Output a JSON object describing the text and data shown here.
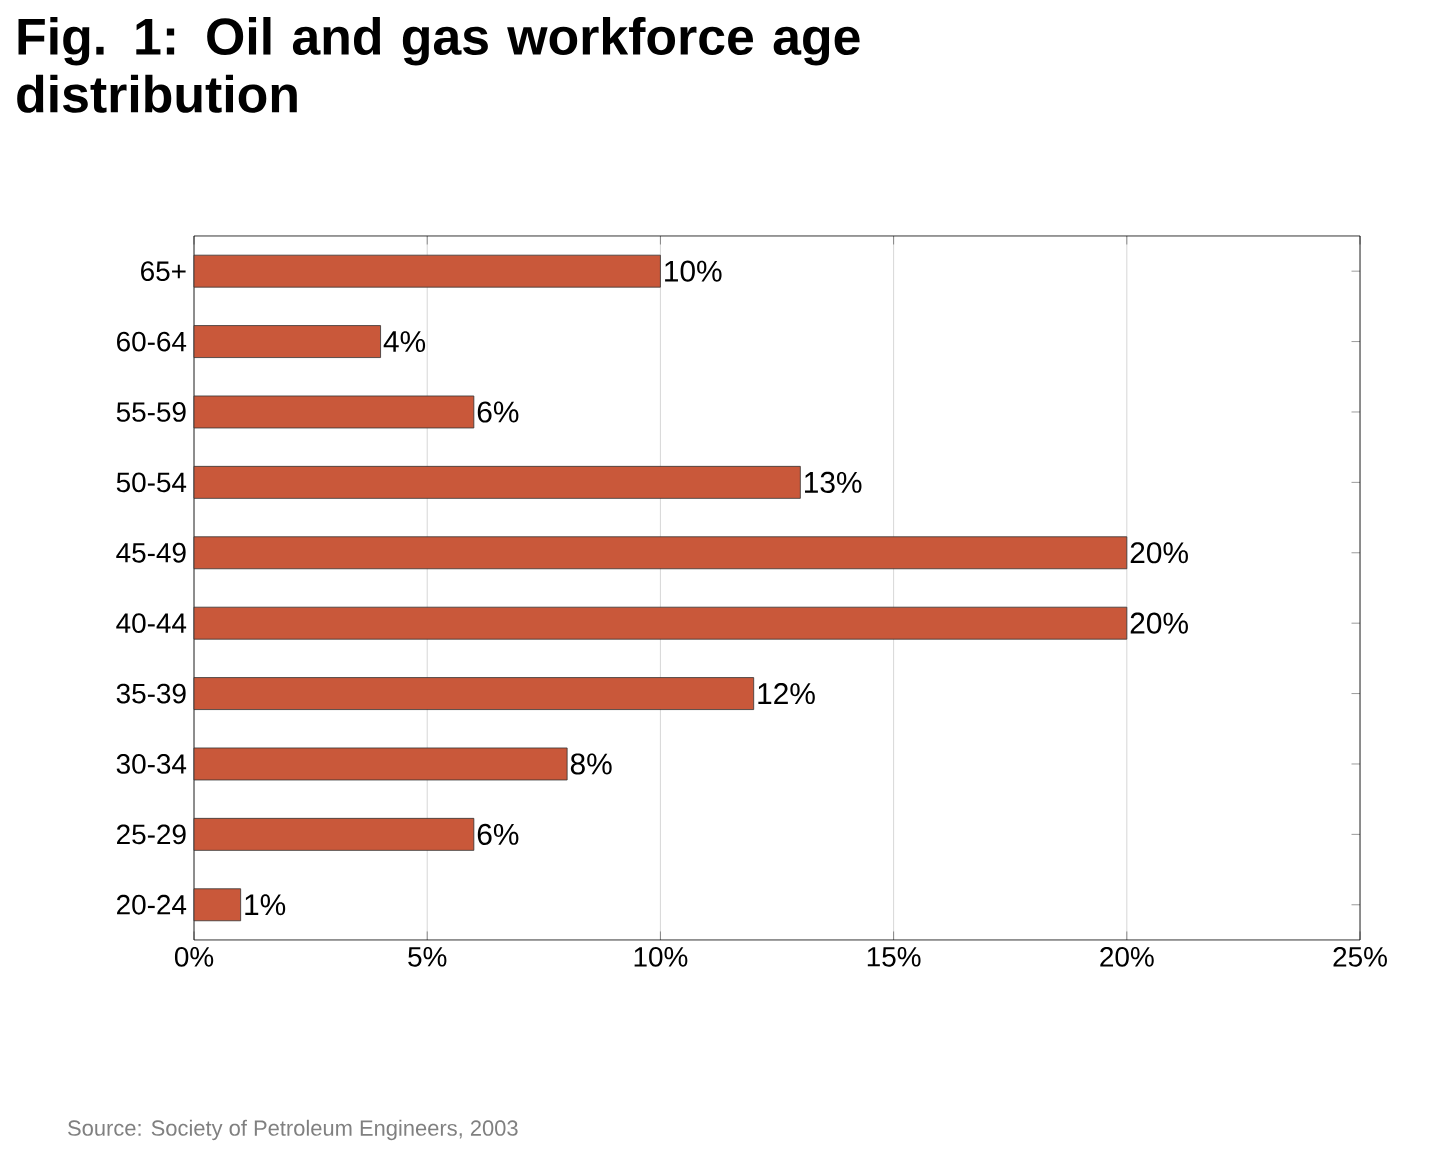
{
  "chart_data": {
    "type": "bar",
    "orientation": "horizontal",
    "title": "Fig. 1: Oil and gas workforce age distribution",
    "categories": [
      "65+",
      "60-64",
      "55-59",
      "50-54",
      "45-49",
      "40-44",
      "35-39",
      "30-34",
      "25-29",
      "20-24"
    ],
    "values": [
      10,
      4,
      6,
      13,
      20,
      20,
      12,
      8,
      6,
      1
    ],
    "value_labels": [
      "10%",
      "4%",
      "6%",
      "13%",
      "20%",
      "20%",
      "12%",
      "8%",
      "6%",
      "1%"
    ],
    "color": "#c9583a",
    "xlim": [
      0,
      25
    ],
    "xticks": [
      {
        "value": 0,
        "label": "0%"
      },
      {
        "value": 5,
        "label": "5%"
      },
      {
        "value": 10,
        "label": "10%"
      },
      {
        "value": 15,
        "label": "15%"
      },
      {
        "value": 20,
        "label": "20%"
      },
      {
        "value": 25,
        "label": "25%"
      }
    ],
    "grid": "x",
    "annotations": [
      "Source: Society of Petroleum Engineers, 2003"
    ]
  }
}
